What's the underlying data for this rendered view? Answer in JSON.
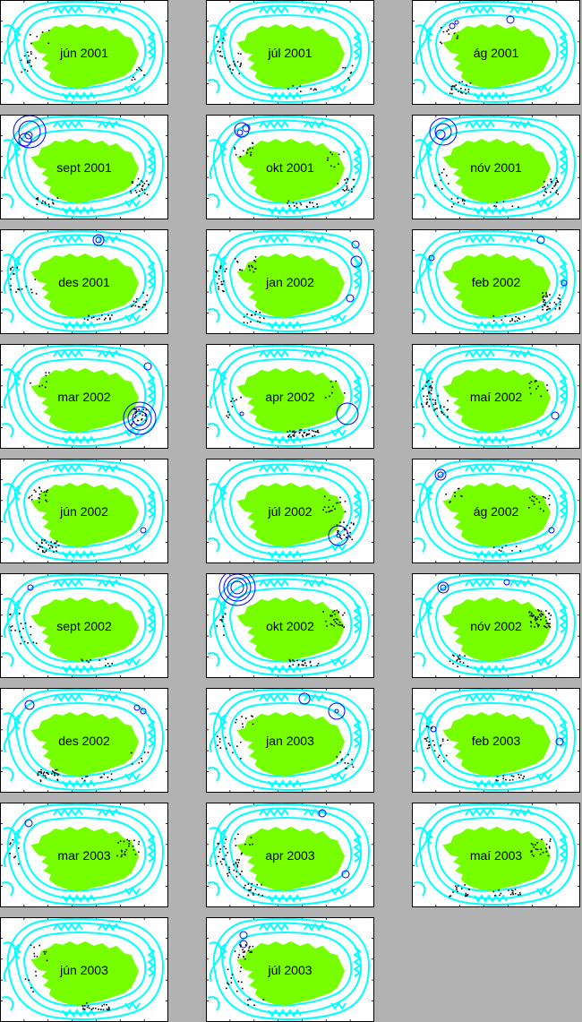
{
  "colors": {
    "background": "#b2b2b2",
    "map_fill": "#ffffff",
    "land": "#77ff00",
    "depth_contours": "#00ffff",
    "epicenter_dots": "#000000",
    "magnitude_circles": "#0000ff"
  },
  "panels": [
    {
      "label": "jún 2001"
    },
    {
      "label": "júl 2001"
    },
    {
      "label": "ág 2001"
    },
    {
      "label": "sept 2001"
    },
    {
      "label": "okt 2001"
    },
    {
      "label": "nóv 2001"
    },
    {
      "label": "des 2001"
    },
    {
      "label": "jan 2002"
    },
    {
      "label": "feb 2002"
    },
    {
      "label": "mar 2002"
    },
    {
      "label": "apr 2002"
    },
    {
      "label": "maí 2002"
    },
    {
      "label": "jún 2002"
    },
    {
      "label": "júl 2002"
    },
    {
      "label": "ág 2002"
    },
    {
      "label": "sept 2002"
    },
    {
      "label": "okt 2002"
    },
    {
      "label": "nóv 2002"
    },
    {
      "label": "des 2002"
    },
    {
      "label": "jan 2003"
    },
    {
      "label": "feb 2003"
    },
    {
      "label": "mar 2003"
    },
    {
      "label": "apr 2003"
    },
    {
      "label": "maí 2003"
    },
    {
      "label": "jún 2003"
    },
    {
      "label": "júl 2003"
    }
  ]
}
